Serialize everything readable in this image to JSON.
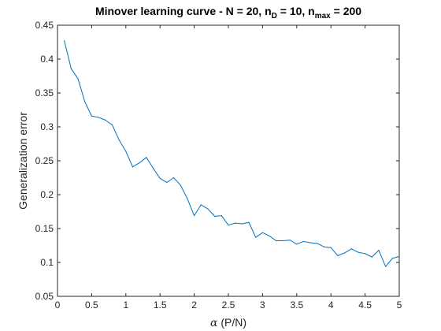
{
  "colors": {
    "line": "#0072BD",
    "axes": "#262626",
    "background": "#ffffff"
  },
  "chart_data": {
    "type": "line",
    "title": {
      "prefix": "Minover learning curve - N = 20, n",
      "sub1": "D",
      "middle": " = 10, n",
      "sub2": "max",
      "suffix": " = 200"
    },
    "xlabel": {
      "symbol": "α",
      "text": " (P/N)"
    },
    "ylabel": "Generalization error",
    "xlim": [
      0,
      5
    ],
    "ylim": [
      0.05,
      0.45
    ],
    "grid": false,
    "x_ticks": [
      0,
      0.5,
      1,
      1.5,
      2,
      2.5,
      3,
      3.5,
      4,
      4.5,
      5
    ],
    "x_tick_labels": [
      "0",
      "0.5",
      "1",
      "1.5",
      "2",
      "2.5",
      "3",
      "3.5",
      "4",
      "4.5",
      "5"
    ],
    "y_ticks": [
      0.05,
      0.1,
      0.15,
      0.2,
      0.25,
      0.3,
      0.35,
      0.4,
      0.45
    ],
    "y_tick_labels": [
      "0.05",
      "0.1",
      "0.15",
      "0.2",
      "0.25",
      "0.3",
      "0.35",
      "0.4",
      "0.45"
    ],
    "series": [
      {
        "x": [
          0.1,
          0.2,
          0.3,
          0.4,
          0.5,
          0.6,
          0.7,
          0.8,
          0.9,
          1.0,
          1.1,
          1.2,
          1.3,
          1.4,
          1.5,
          1.6,
          1.7,
          1.8,
          1.9,
          2.0,
          2.1,
          2.2,
          2.3,
          2.4,
          2.5,
          2.6,
          2.7,
          2.8,
          2.9,
          3.0,
          3.1,
          3.2,
          3.3,
          3.4,
          3.5,
          3.6,
          3.7,
          3.8,
          3.9,
          4.0,
          4.1,
          4.2,
          4.3,
          4.4,
          4.5,
          4.6,
          4.7,
          4.8,
          4.9,
          5.0
        ],
        "y": [
          0.427,
          0.386,
          0.371,
          0.337,
          0.316,
          0.314,
          0.31,
          0.303,
          0.281,
          0.264,
          0.241,
          0.247,
          0.255,
          0.239,
          0.224,
          0.218,
          0.225,
          0.214,
          0.194,
          0.169,
          0.185,
          0.179,
          0.168,
          0.169,
          0.155,
          0.158,
          0.157,
          0.159,
          0.137,
          0.144,
          0.139,
          0.132,
          0.132,
          0.133,
          0.127,
          0.131,
          0.129,
          0.128,
          0.123,
          0.122,
          0.11,
          0.114,
          0.12,
          0.115,
          0.113,
          0.108,
          0.118,
          0.094,
          0.106,
          0.109
        ]
      }
    ]
  }
}
